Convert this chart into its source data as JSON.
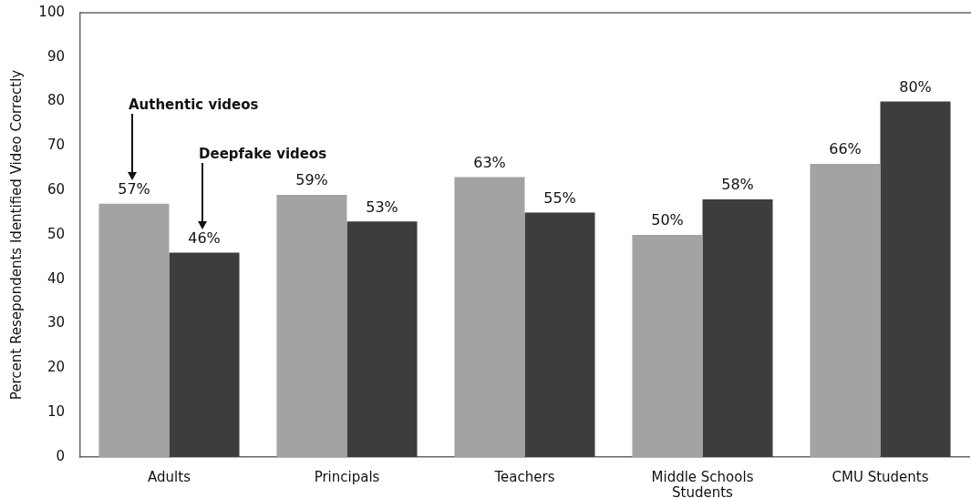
{
  "chart_data": {
    "type": "bar",
    "ylabel": "Percent Resepondents Identified Video Correctly",
    "categories": [
      "Adults",
      "Principals",
      "Teachers",
      "Middle Schools Students",
      "CMU Students"
    ],
    "series": [
      {
        "color": "#a3a3a3",
        "values": [
          57,
          59,
          63,
          50,
          66
        ],
        "value_labels": [
          "57%",
          "59%",
          "63%",
          "50%",
          "66%"
        ]
      },
      {
        "color": "#3d3d3d",
        "values": [
          46,
          53,
          55,
          58,
          80
        ],
        "value_labels": [
          "46%",
          "53%",
          "55%",
          "58%",
          "80%"
        ]
      }
    ],
    "ylim": [
      0,
      100
    ],
    "yticks": [
      0,
      10,
      20,
      30,
      40,
      50,
      60,
      70,
      80,
      90,
      100
    ],
    "annotations": [
      "Authentic videos",
      "Deepfake videos"
    ]
  }
}
